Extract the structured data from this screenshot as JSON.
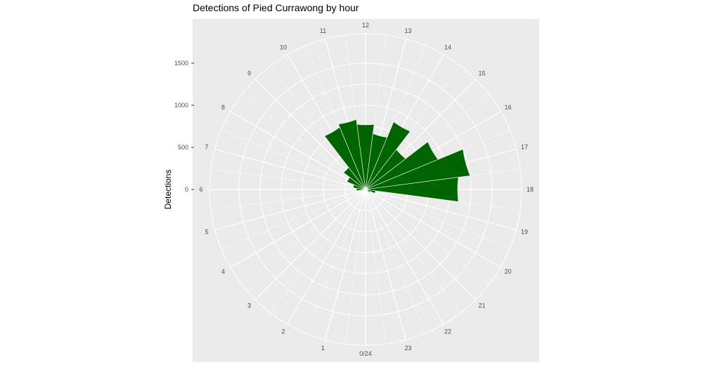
{
  "chart_data": {
    "type": "bar",
    "coord": "polar",
    "title": "Detections of Pied Currawong by hour",
    "xlabel": "",
    "ylabel": "Detections",
    "categories": [
      "0/24",
      "1",
      "2",
      "3",
      "4",
      "5",
      "6",
      "7",
      "8",
      "9",
      "10",
      "11",
      "12",
      "13",
      "14",
      "15",
      "16",
      "17",
      "18",
      "19",
      "20",
      "21",
      "22",
      "23"
    ],
    "hours": [
      0,
      1,
      2,
      3,
      4,
      5,
      6,
      7,
      8,
      9,
      10,
      11,
      12,
      13,
      14,
      15,
      16,
      17,
      18,
      19,
      20,
      21,
      22,
      23
    ],
    "values": [
      0,
      0,
      0,
      0,
      0,
      30,
      110,
      150,
      240,
      330,
      800,
      840,
      780,
      670,
      870,
      600,
      930,
      1250,
      1110,
      120,
      60,
      0,
      0,
      0
    ],
    "radial_ticks": [
      "0",
      "500",
      "1000",
      "1500"
    ],
    "radial_tick_values": [
      0,
      500,
      1000,
      1500
    ],
    "rlim": [
      0,
      1850
    ],
    "bar_color": "#006400",
    "panel_color": "#ebebeb",
    "grid": true
  }
}
